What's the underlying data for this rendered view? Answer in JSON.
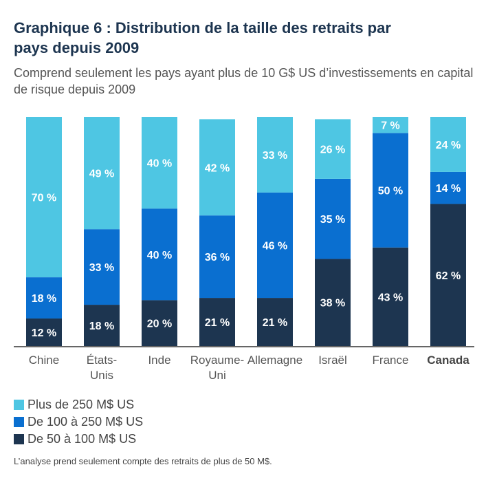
{
  "title": "Graphique 6 : Distribution de la taille des retraits par pays depuis 2009",
  "subtitle": "Comprend seulement les pays ayant plus de 10 G$ US d’investissements en capital de risque depuis 2009",
  "note": "L’analyse prend seulement compte des retraits de plus de 50 M$.",
  "chart_data": {
    "type": "bar",
    "stacked": true,
    "categories": [
      "Chine",
      "États-Unis",
      "Inde",
      "Royaume-Uni",
      "Allemagne",
      "Israël",
      "France",
      "Canada"
    ],
    "highlighted_category": "Canada",
    "series": [
      {
        "name": "De 50 à 100 M$ US",
        "color": "#1d3550",
        "values": [
          12,
          18,
          20,
          21,
          21,
          38,
          43,
          62
        ]
      },
      {
        "name": "De 100 à 250 M$ US",
        "color": "#0a6fd0",
        "values": [
          18,
          33,
          40,
          36,
          46,
          35,
          50,
          14
        ]
      },
      {
        "name": "Plus de 250 M$ US",
        "color": "#4ec6e3",
        "values": [
          70,
          49,
          40,
          42,
          33,
          26,
          7,
          24
        ]
      }
    ],
    "value_suffix": " %",
    "ylim": [
      0,
      100
    ],
    "legend_position": "bottom-left"
  }
}
